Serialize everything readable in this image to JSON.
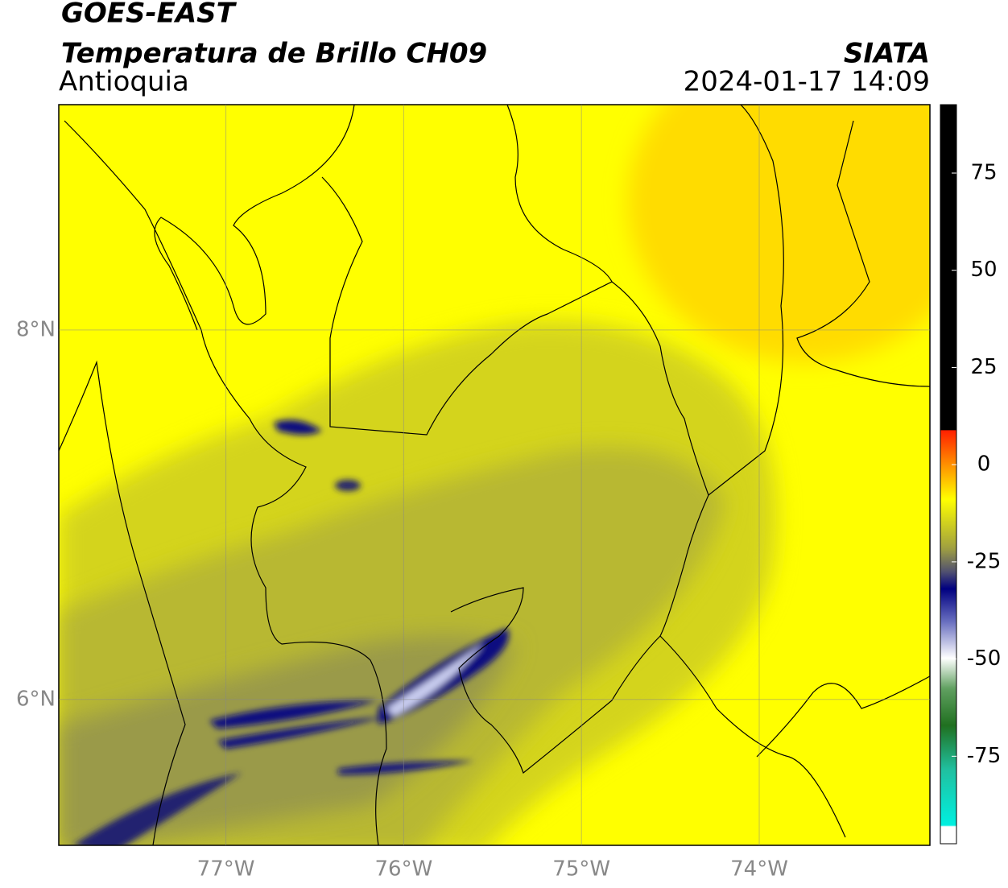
{
  "header": {
    "title": "GOES-EAST",
    "subtitle": "Temperatura de Brillo CH09",
    "region": "Antioquia",
    "source": "SIATA",
    "timestamp": "2024-01-17 14:09"
  },
  "map": {
    "lonlim": [
      -77.94,
      -73.04
    ],
    "latlim": [
      5.21,
      9.22
    ],
    "lon_ticks": [
      {
        "value": -77,
        "label": "77°W"
      },
      {
        "value": -76,
        "label": "76°W"
      },
      {
        "value": -75,
        "label": "75°W"
      },
      {
        "value": -74,
        "label": "74°W"
      }
    ],
    "lat_ticks": [
      {
        "value": 8,
        "label": "8°N"
      },
      {
        "value": 6,
        "label": "6°N"
      }
    ],
    "grid": true
  },
  "colorbar": {
    "lim": [
      -97.5,
      92.6
    ],
    "ticks": [
      75,
      50,
      25,
      0,
      -25,
      -50,
      -75
    ]
  }
}
